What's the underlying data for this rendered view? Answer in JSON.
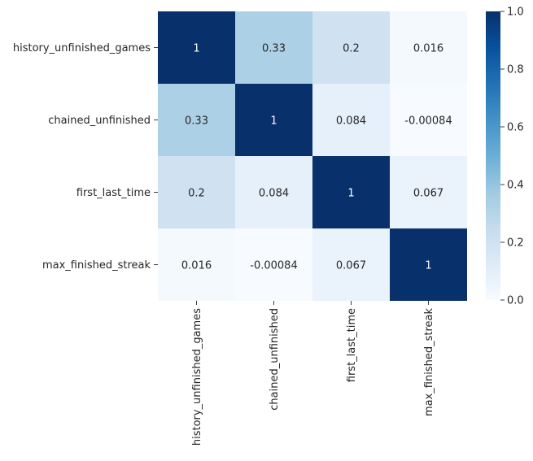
{
  "chart_data": {
    "type": "heatmap",
    "title": "",
    "xlabel": "",
    "ylabel": "",
    "row_labels": [
      "history_unfinished_games",
      "chained_unfinished",
      "first_last_time",
      "max_finished_streak"
    ],
    "col_labels": [
      "history_unfinished_games",
      "chained_unfinished",
      "first_last_time",
      "max_finished_streak"
    ],
    "values": [
      [
        1,
        0.33,
        0.2,
        0.016
      ],
      [
        0.33,
        1,
        0.084,
        -0.00084
      ],
      [
        0.2,
        0.084,
        1,
        0.067
      ],
      [
        0.016,
        -0.00084,
        0.067,
        1
      ]
    ],
    "cell_labels": [
      [
        "1",
        "0.33",
        "0.2",
        "0.016"
      ],
      [
        "0.33",
        "1",
        "0.084",
        "-0.00084"
      ],
      [
        "0.2",
        "0.084",
        "1",
        "0.067"
      ],
      [
        "0.016",
        "-0.00084",
        "0.067",
        "1"
      ]
    ],
    "colormap": "Blues",
    "colormap_stops": [
      "#f7fbff",
      "#deebf7",
      "#c6dbef",
      "#9ecae1",
      "#6baed6",
      "#4292c6",
      "#2171b5",
      "#08519c",
      "#08306b"
    ],
    "colorbar": {
      "range": [
        0,
        1
      ],
      "ticks": [
        0.0,
        0.2,
        0.4,
        0.6,
        0.8,
        1.0
      ],
      "tick_labels": [
        "0.0",
        "0.2",
        "0.4",
        "0.6",
        "0.8",
        "1.0"
      ],
      "placement": "right"
    },
    "grid": false,
    "legend": "none"
  }
}
